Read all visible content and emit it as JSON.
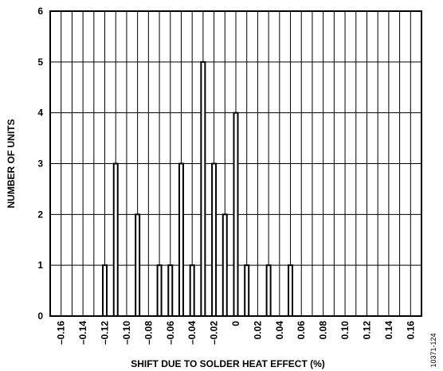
{
  "chart_data": {
    "type": "bar",
    "xlabel": "SHIFT DUE TO SOLDER HEAT EFFECT (%)",
    "ylabel": "NUMBER OF UNITS",
    "xlim": [
      -0.17,
      0.17
    ],
    "ylim": [
      0,
      6
    ],
    "grid": true,
    "x_tick_values": [
      -0.16,
      -0.14,
      -0.12,
      -0.1,
      -0.08,
      -0.06,
      -0.04,
      -0.02,
      0,
      0.02,
      0.04,
      0.06,
      0.08,
      0.1,
      0.12,
      0.14,
      0.16
    ],
    "x_tick_labels": [
      "–0.16",
      "–0.14",
      "–0.12",
      "–0.10",
      "–0.08",
      "–0.06",
      "–0.04",
      "–0.02",
      "0",
      "0.02",
      "0.04",
      "0.06",
      "0.08",
      "0.10",
      "0.12",
      "0.14",
      "0.16"
    ],
    "y_ticks": [
      0,
      1,
      2,
      3,
      4,
      5,
      6
    ],
    "x": [
      -0.12,
      -0.11,
      -0.09,
      -0.07,
      -0.06,
      -0.05,
      -0.04,
      -0.03,
      -0.02,
      -0.01,
      0.0,
      0.01,
      0.03,
      0.05
    ],
    "values": [
      1,
      3,
      2,
      1,
      1,
      3,
      1,
      5,
      3,
      2,
      4,
      1,
      1,
      1
    ]
  },
  "figure_ref": "10371-124"
}
